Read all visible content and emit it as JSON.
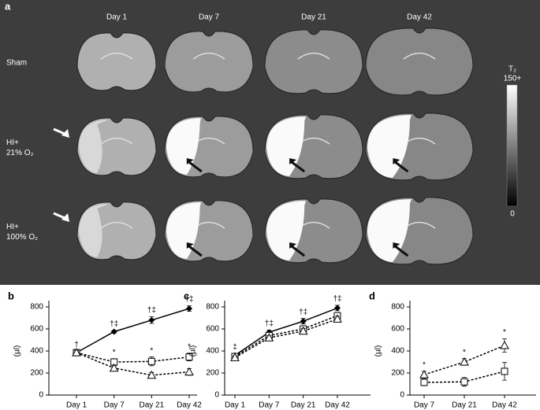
{
  "panel_a": {
    "label": "a",
    "column_labels": [
      "Day 1",
      "Day 7",
      "Day 21",
      "Day 42"
    ],
    "row_labels": [
      [
        "Sham"
      ],
      [
        "HI+",
        "21% O₂"
      ],
      [
        "HI+",
        "100% O₂"
      ]
    ],
    "colorbar": {
      "title": "T₂",
      "max_label": "150+",
      "min_label": "0"
    }
  },
  "chart_data": [
    {
      "type": "line",
      "panel_label": "b",
      "ylabel": "(µl)",
      "categories": [
        "Day 1",
        "Day 7",
        "Day 21",
        "Day 42"
      ],
      "ylim": [
        0,
        800
      ],
      "yticks": [
        0,
        200,
        400,
        600,
        800
      ],
      "series": [
        {
          "color": "#000000",
          "marker": "diamond",
          "dashed": false,
          "values": [
            385,
            575,
            680,
            785
          ],
          "errors": [
            12,
            12,
            30,
            25
          ]
        },
        {
          "color": "#000000",
          "marker": "square",
          "dashed": true,
          "values": [
            385,
            300,
            305,
            345
          ],
          "errors": [
            20,
            30,
            40,
            35
          ]
        },
        {
          "color": "#000000",
          "marker": "triangle",
          "dashed": true,
          "values": [
            385,
            245,
            180,
            210
          ],
          "errors": [
            20,
            20,
            25,
            30
          ]
        }
      ],
      "annotations": [
        {
          "text": "†",
          "category": 0,
          "series": 0
        },
        {
          "text": "†‡",
          "category": 1,
          "series": 0
        },
        {
          "text": "†‡",
          "category": 2,
          "series": 0
        },
        {
          "text": "†‡",
          "category": 3,
          "series": 0
        },
        {
          "text": "*",
          "category": 1,
          "series": 1
        },
        {
          "text": "*",
          "category": 2,
          "series": 1
        },
        {
          "text": "*",
          "category": 3,
          "series": 1
        }
      ]
    },
    {
      "type": "line",
      "panel_label": "c",
      "ylabel": "(µl)",
      "categories": [
        "Day 1",
        "Day 7",
        "Day 21",
        "Day 42"
      ],
      "ylim": [
        0,
        800
      ],
      "yticks": [
        0,
        200,
        400,
        600,
        800
      ],
      "series": [
        {
          "color": "#000000",
          "marker": "diamond",
          "dashed": false,
          "values": [
            360,
            570,
            670,
            790
          ],
          "errors": [
            15,
            20,
            25,
            25
          ]
        },
        {
          "color": "#000000",
          "marker": "square",
          "dashed": true,
          "values": [
            350,
            540,
            600,
            720
          ],
          "errors": [
            15,
            20,
            25,
            25
          ]
        },
        {
          "color": "#000000",
          "marker": "triangle",
          "dashed": true,
          "values": [
            340,
            520,
            580,
            690
          ],
          "errors": [
            15,
            20,
            25,
            25
          ]
        }
      ],
      "annotations": [
        {
          "text": "‡",
          "category": 0,
          "series": 0
        },
        {
          "text": "†‡",
          "category": 1,
          "series": 0
        },
        {
          "text": "†‡",
          "category": 2,
          "series": 0
        },
        {
          "text": "†‡",
          "category": 3,
          "series": 0
        }
      ]
    },
    {
      "type": "line",
      "panel_label": "d",
      "ylabel": "(µl)",
      "categories": [
        "Day 7",
        "Day 21",
        "Day 42"
      ],
      "ylim": [
        0,
        800
      ],
      "yticks": [
        0,
        200,
        400,
        600,
        800
      ],
      "series": [
        {
          "color": "#000000",
          "marker": "triangle",
          "dashed": true,
          "values": [
            185,
            300,
            450
          ],
          "errors": [
            30,
            30,
            60
          ]
        },
        {
          "color": "#000000",
          "marker": "square",
          "dashed": true,
          "values": [
            115,
            120,
            215
          ],
          "errors": [
            30,
            40,
            80
          ]
        }
      ],
      "annotations": [
        {
          "text": "*",
          "category": 0,
          "series": 0
        },
        {
          "text": "*",
          "category": 1,
          "series": 0
        },
        {
          "text": "*",
          "category": 2,
          "series": 0
        }
      ]
    }
  ]
}
